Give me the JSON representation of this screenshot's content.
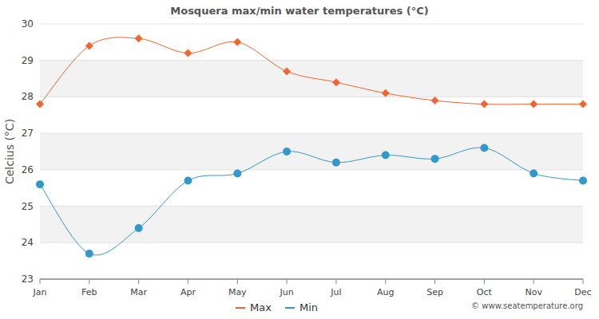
{
  "chart_data": {
    "type": "line",
    "title": "Mosquera max/min water temperatures (°C)",
    "y_label": "Celcius (°C)",
    "annotations": [
      "© www.seatemperature.org"
    ],
    "categories": [
      "Jan",
      "Feb",
      "Mar",
      "Apr",
      "May",
      "Jun",
      "Jul",
      "Aug",
      "Sep",
      "Oct",
      "Nov",
      "Dec"
    ],
    "series": [
      {
        "name": "Max",
        "color": "#f26530",
        "marker": "diamond",
        "line_style": "solid",
        "values": [
          27.8,
          29.4,
          29.6,
          29.2,
          29.5,
          28.7,
          28.4,
          28.1,
          27.9,
          27.8,
          27.8,
          27.8
        ]
      },
      {
        "name": "Min",
        "color": "#3399cc",
        "marker": "circle",
        "line_style": "solid",
        "values": [
          25.6,
          23.7,
          24.4,
          25.7,
          25.9,
          26.5,
          26.2,
          26.4,
          26.3,
          26.6,
          25.9,
          25.7
        ]
      }
    ],
    "ylim": [
      23,
      30
    ],
    "yticks": [
      23,
      24,
      25,
      26,
      27,
      28,
      29,
      30
    ],
    "grid": true,
    "legend": "bottom"
  }
}
